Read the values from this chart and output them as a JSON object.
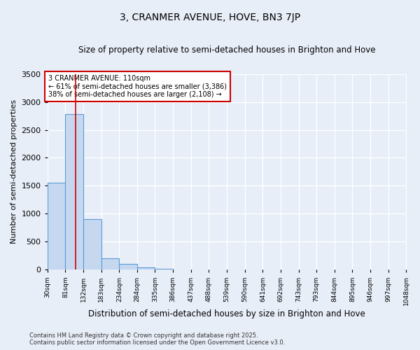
{
  "title": "3, CRANMER AVENUE, HOVE, BN3 7JP",
  "subtitle": "Size of property relative to semi-detached houses in Brighton and Hove",
  "xlabel": "Distribution of semi-detached houses by size in Brighton and Hove",
  "ylabel": "Number of semi-detached properties",
  "bin_edges": [
    30,
    81,
    132,
    183,
    234,
    284,
    335,
    386,
    437,
    488,
    539,
    590,
    641,
    692,
    743,
    793,
    844,
    895,
    946,
    997,
    1048
  ],
  "counts": [
    1550,
    2780,
    900,
    210,
    100,
    40,
    15,
    0,
    0,
    0,
    0,
    0,
    0,
    0,
    0,
    0,
    0,
    0,
    0,
    0
  ],
  "bar_color": "#c5d8f0",
  "bar_edge_color": "#5b9bd5",
  "vline_x": 110,
  "vline_color": "#cc0000",
  "annotation_line1": "3 CRANMER AVENUE: 110sqm",
  "annotation_line2": "← 61% of semi-detached houses are smaller (3,386)",
  "annotation_line3": "38% of semi-detached houses are larger (2,108) →",
  "ylim": [
    0,
    3500
  ],
  "bg_color": "#e8eef8",
  "footnote1": "Contains HM Land Registry data © Crown copyright and database right 2025.",
  "footnote2": "Contains public sector information licensed under the Open Government Licence v3.0."
}
